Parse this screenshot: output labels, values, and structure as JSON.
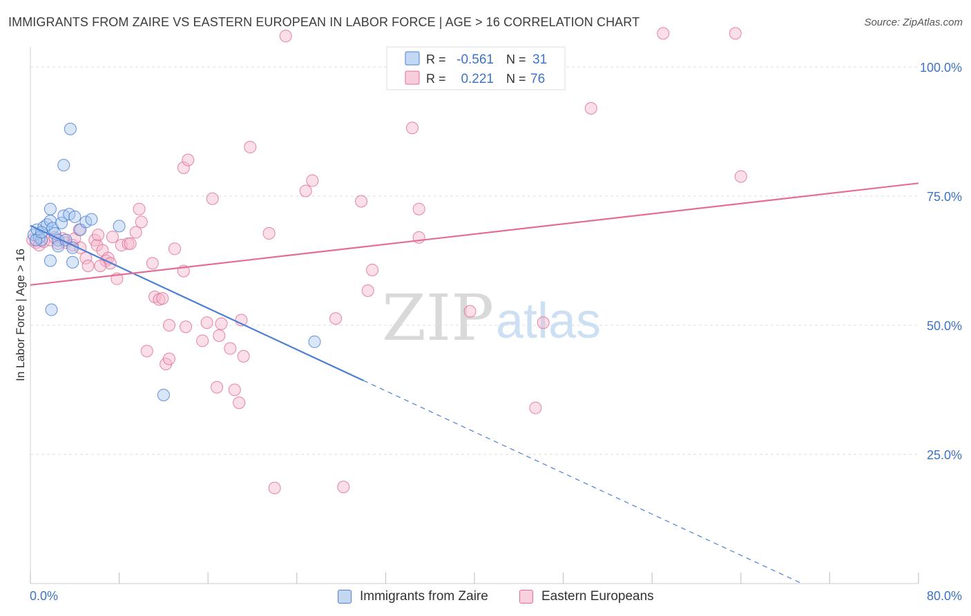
{
  "header": {
    "title": "IMMIGRANTS FROM ZAIRE VS EASTERN EUROPEAN IN LABOR FORCE | AGE > 16 CORRELATION CHART",
    "source": "Source: ZipAtlas.com"
  },
  "watermark": {
    "zip": "ZIP",
    "atlas": "atlas"
  },
  "colors": {
    "blue": "#4a7fd4",
    "blue_fill": "#a9c7ef",
    "pink": "#e46d96",
    "pink_fill": "#f4b7cc",
    "axis_text": "#3b73c8",
    "grid": "#dddddd"
  },
  "legend_box": {
    "rows": [
      {
        "r_label": "R =",
        "r_value": "-0.561",
        "n_label": "N =",
        "n_value": "31"
      },
      {
        "r_label": "R =",
        "r_value": "0.221",
        "n_label": "N =",
        "n_value": "76"
      }
    ]
  },
  "chart_data": {
    "type": "scatter",
    "title": "IMMIGRANTS FROM ZAIRE VS EASTERN EUROPEAN IN LABOR FORCE | AGE > 16 CORRELATION CHART",
    "xlabel": "",
    "ylabel": "In Labor Force | Age > 16",
    "xlim": [
      0,
      80
    ],
    "ylim": [
      0,
      105
    ],
    "x_tick_labels": [
      "0.0%",
      "80.0%"
    ],
    "y_ticks": [
      25,
      50,
      75,
      100
    ],
    "y_tick_labels": [
      "25.0%",
      "50.0%",
      "75.0%",
      "100.0%"
    ],
    "grid": true,
    "series": [
      {
        "name": "Immigrants from Zaire",
        "color": "blue",
        "r": -0.561,
        "n": 31,
        "trend": {
          "x0": 0,
          "y0": 69.3,
          "x1": 30,
          "y1": 39.3,
          "dash_to_x": 69.5,
          "dash_to_y": 0
        },
        "points": [
          [
            0.3,
            67.5
          ],
          [
            0.6,
            68.5
          ],
          [
            0.8,
            67
          ],
          [
            1.2,
            69
          ],
          [
            1.5,
            69.5
          ],
          [
            1.8,
            70.2
          ],
          [
            2.0,
            68.8
          ],
          [
            2.2,
            67.8
          ],
          [
            2.5,
            66.5
          ],
          [
            2.8,
            69.8
          ],
          [
            3.0,
            71.2
          ],
          [
            3.5,
            71.5
          ],
          [
            4.0,
            71
          ],
          [
            4.5,
            68.5
          ],
          [
            5.0,
            70
          ],
          [
            5.5,
            70.5
          ],
          [
            1.0,
            66.5
          ],
          [
            1.8,
            72.5
          ],
          [
            2.5,
            65.3
          ],
          [
            3.2,
            66.5
          ],
          [
            3.8,
            65
          ],
          [
            0.5,
            66.5
          ],
          [
            1.0,
            68
          ],
          [
            1.8,
            62.5
          ],
          [
            3.8,
            62.2
          ],
          [
            3.0,
            81
          ],
          [
            3.6,
            88
          ],
          [
            1.9,
            53
          ],
          [
            8.0,
            69.2
          ],
          [
            12.0,
            36.5
          ],
          [
            25.6,
            46.8
          ]
        ]
      },
      {
        "name": "Eastern Europeans",
        "color": "pink",
        "r": 0.221,
        "n": 76,
        "trend": {
          "x0": 0,
          "y0": 57.8,
          "x1": 80,
          "y1": 77.5
        },
        "points": [
          [
            0.2,
            66.5
          ],
          [
            0.5,
            66
          ],
          [
            0.8,
            65.5
          ],
          [
            1.2,
            66.2
          ],
          [
            1.8,
            66.5
          ],
          [
            2.2,
            67
          ],
          [
            2.5,
            65.8
          ],
          [
            3.2,
            66
          ],
          [
            3.8,
            65.5
          ],
          [
            4.0,
            66.8
          ],
          [
            4.5,
            65
          ],
          [
            5.0,
            63
          ],
          [
            4.4,
            68.5
          ],
          [
            5.2,
            61.5
          ],
          [
            5.8,
            66.5
          ],
          [
            6.0,
            65.5
          ],
          [
            6.1,
            67.5
          ],
          [
            6.5,
            64.5
          ],
          [
            6.8,
            62.5
          ],
          [
            7.0,
            63
          ],
          [
            7.2,
            62
          ],
          [
            7.8,
            59
          ],
          [
            8.2,
            65.5
          ],
          [
            8.8,
            65.8
          ],
          [
            9.5,
            68
          ],
          [
            10.0,
            70
          ],
          [
            9.8,
            72.5
          ],
          [
            10.5,
            45
          ],
          [
            11.0,
            62
          ],
          [
            11.2,
            55.5
          ],
          [
            11.6,
            55
          ],
          [
            11.9,
            55.2
          ],
          [
            12.2,
            42.5
          ],
          [
            12.5,
            43.5
          ],
          [
            12.5,
            50
          ],
          [
            13.8,
            60.5
          ],
          [
            14.0,
            49.7
          ],
          [
            13.8,
            80.5
          ],
          [
            14.2,
            82
          ],
          [
            15.5,
            47
          ],
          [
            15.9,
            50.5
          ],
          [
            16.4,
            74.5
          ],
          [
            16.8,
            38
          ],
          [
            17.0,
            48
          ],
          [
            17.2,
            50.3
          ],
          [
            18.0,
            45.5
          ],
          [
            18.4,
            37.5
          ],
          [
            18.8,
            35
          ],
          [
            19.0,
            51
          ],
          [
            19.2,
            44
          ],
          [
            19.8,
            84.5
          ],
          [
            22.0,
            18.5
          ],
          [
            23.0,
            106
          ],
          [
            24.8,
            76
          ],
          [
            25.4,
            78
          ],
          [
            27.5,
            51.3
          ],
          [
            28.2,
            18.7
          ],
          [
            29.8,
            74
          ],
          [
            30.4,
            56.7
          ],
          [
            30.8,
            60.7
          ],
          [
            34.4,
            88.2
          ],
          [
            35.0,
            72.5
          ],
          [
            35.0,
            67
          ],
          [
            39.6,
            52.7
          ],
          [
            45.5,
            34
          ],
          [
            46.2,
            50.5
          ],
          [
            50.5,
            92
          ],
          [
            57.0,
            106.5
          ],
          [
            63.5,
            106.5
          ],
          [
            64.0,
            78.8
          ],
          [
            6.3,
            61.5
          ],
          [
            9.0,
            65.8
          ],
          [
            2.9,
            66.8
          ],
          [
            7.4,
            67.1
          ],
          [
            13.0,
            64.8
          ],
          [
            21.5,
            67.8
          ]
        ]
      }
    ]
  },
  "axes": {
    "y_label": "In Labor Force | Age > 16",
    "x_min_label": "0.0%",
    "x_max_label": "80.0%"
  },
  "bottom_legend": {
    "items": [
      {
        "label": "Immigrants from Zaire"
      },
      {
        "label": "Eastern Europeans"
      }
    ]
  }
}
